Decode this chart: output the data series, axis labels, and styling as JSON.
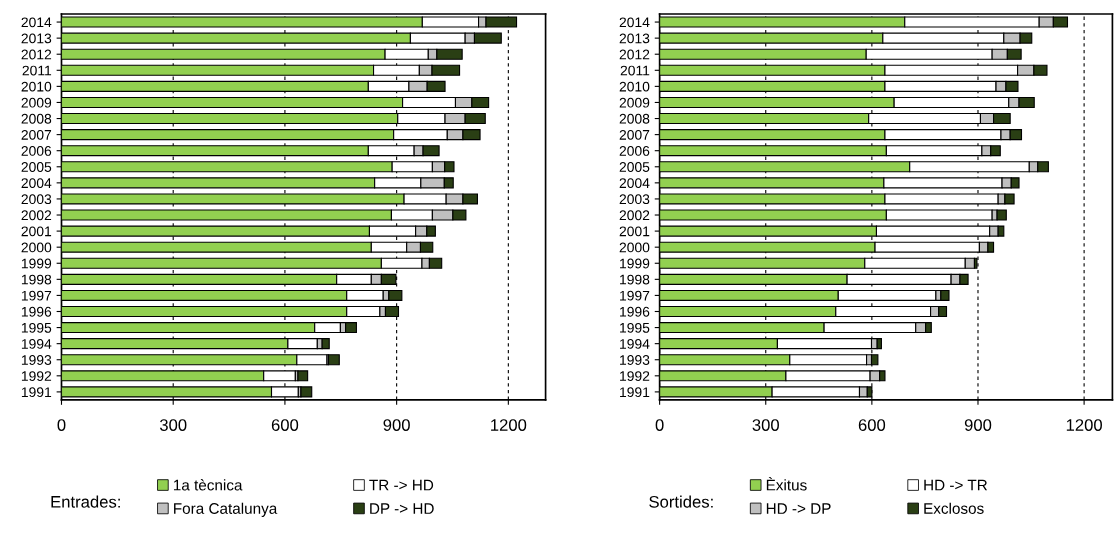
{
  "chart_data": [
    {
      "type": "bar",
      "orientation": "horizontal",
      "stacked": true,
      "grid": "x",
      "legend": "bottom",
      "legend_title": "Entrades:",
      "categories": [
        "2014",
        "2013",
        "2012",
        "2011",
        "2010",
        "2009",
        "2008",
        "2007",
        "2006",
        "2005",
        "2004",
        "2003",
        "2002",
        "2001",
        "2000",
        "1999",
        "1998",
        "1997",
        "1996",
        "1995",
        "1994",
        "1993",
        "1992",
        "1991"
      ],
      "xlim": [
        0,
        1300
      ],
      "xticks": [
        0,
        300,
        600,
        900,
        1200
      ],
      "series": [
        {
          "name": "1a tècnica",
          "color": "#92d050",
          "values": [
            969,
            937,
            869,
            838,
            824,
            916,
            903,
            892,
            824,
            888,
            841,
            920,
            886,
            827,
            832,
            859,
            739,
            766,
            766,
            680,
            608,
            632,
            543,
            564
          ]
        },
        {
          "name": "TR -> HD",
          "color": "#ffffff",
          "values": [
            151,
            147,
            116,
            123,
            109,
            142,
            127,
            144,
            123,
            108,
            124,
            113,
            110,
            124,
            95,
            109,
            93,
            98,
            89,
            69,
            79,
            81,
            85,
            72
          ]
        },
        {
          "name": "Fora Catalunya",
          "color": "#c0c0c0",
          "values": [
            20,
            25,
            23,
            34,
            49,
            44,
            54,
            42,
            24,
            33,
            63,
            45,
            55,
            30,
            37,
            20,
            27,
            15,
            15,
            14,
            13,
            4,
            7,
            7
          ]
        },
        {
          "name": "DP -> HD",
          "color": "#2a3f14",
          "values": [
            82,
            72,
            68,
            74,
            48,
            45,
            54,
            46,
            43,
            25,
            24,
            39,
            35,
            23,
            33,
            33,
            39,
            35,
            35,
            29,
            19,
            29,
            26,
            29
          ]
        }
      ]
    },
    {
      "type": "bar",
      "orientation": "horizontal",
      "stacked": true,
      "grid": "x",
      "legend": "bottom",
      "legend_title": "Sortides:",
      "categories": [
        "2014",
        "2013",
        "2012",
        "2011",
        "2010",
        "2009",
        "2008",
        "2007",
        "2006",
        "2005",
        "2004",
        "2003",
        "2002",
        "2001",
        "2000",
        "1999",
        "1998",
        "1997",
        "1996",
        "1995",
        "1994",
        "1993",
        "1992",
        "1991"
      ],
      "xlim": [
        0,
        1280
      ],
      "xticks": [
        0,
        300,
        600,
        900,
        1200
      ],
      "series": [
        {
          "name": "Èxitus",
          "color": "#92d050",
          "values": [
            693,
            631,
            584,
            637,
            637,
            663,
            591,
            637,
            641,
            707,
            634,
            637,
            641,
            613,
            609,
            580,
            530,
            505,
            498,
            465,
            333,
            368,
            357,
            318
          ]
        },
        {
          "name": "HD -> TR",
          "color": "#ffffff",
          "values": [
            380,
            342,
            356,
            375,
            314,
            324,
            316,
            328,
            270,
            338,
            334,
            320,
            299,
            320,
            295,
            284,
            294,
            276,
            268,
            259,
            266,
            217,
            238,
            247
          ]
        },
        {
          "name": "HD -> DP",
          "color": "#c0c0c0",
          "values": [
            40,
            46,
            43,
            46,
            28,
            29,
            37,
            26,
            25,
            24,
            26,
            19,
            14,
            24,
            24,
            26,
            25,
            14,
            23,
            28,
            16,
            14,
            27,
            22
          ]
        },
        {
          "name": "Exclosos",
          "color": "#2a3f14",
          "values": [
            40,
            33,
            39,
            37,
            34,
            43,
            47,
            32,
            27,
            30,
            22,
            26,
            26,
            16,
            16,
            7,
            23,
            23,
            22,
            16,
            12,
            18,
            15,
            13
          ]
        }
      ]
    }
  ]
}
